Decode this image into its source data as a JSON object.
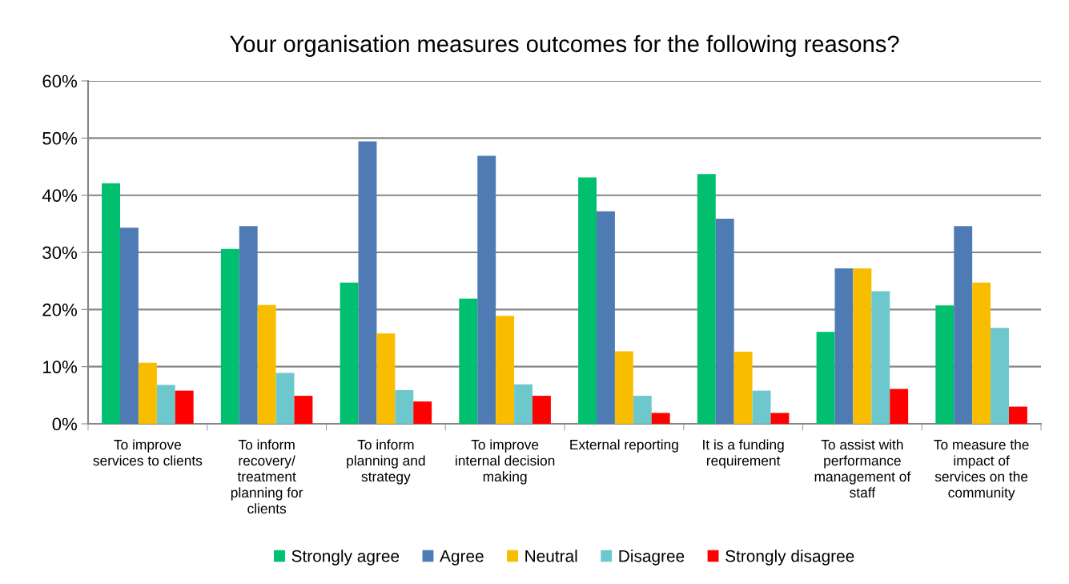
{
  "chart_data": {
    "type": "bar",
    "title": "Your organisation measures outcomes for the following reasons?",
    "categories": [
      "To improve services to clients",
      "To inform recovery/ treatment planning for clients",
      "To inform planning and strategy",
      "To improve internal decision making",
      "External reporting",
      "It is a funding requirement",
      "To assist with performance management of staff",
      "To measure the impact of services on the community"
    ],
    "series": [
      {
        "name": "Strongly agree",
        "color": "#00bf6f",
        "values": [
          42.1,
          30.6,
          24.7,
          21.9,
          43.1,
          43.7,
          16.1,
          20.7
        ]
      },
      {
        "name": "Agree",
        "color": "#4f7bb5",
        "values": [
          34.3,
          34.6,
          49.4,
          46.9,
          37.2,
          35.9,
          27.2,
          34.6
        ]
      },
      {
        "name": "Neutral",
        "color": "#f9bd00",
        "values": [
          10.7,
          20.8,
          15.8,
          18.9,
          12.7,
          12.6,
          27.2,
          24.7
        ]
      },
      {
        "name": "Disagree",
        "color": "#6cc8cd",
        "values": [
          6.8,
          8.9,
          5.9,
          6.9,
          4.9,
          5.8,
          23.2,
          16.8
        ]
      },
      {
        "name": "Strongly disagree",
        "color": "#ff0000",
        "values": [
          5.8,
          4.9,
          3.9,
          4.9,
          1.9,
          1.9,
          6.1,
          3.0
        ]
      }
    ],
    "ylim": [
      0,
      60
    ],
    "yticks": [
      {
        "value": 0,
        "label": "0%"
      },
      {
        "value": 10,
        "label": "10%"
      },
      {
        "value": 20,
        "label": "20%"
      },
      {
        "value": 30,
        "label": "30%"
      },
      {
        "value": 40,
        "label": "40%"
      },
      {
        "value": 50,
        "label": "50%"
      },
      {
        "value": 60,
        "label": "60%"
      }
    ],
    "grid": "y",
    "legend": "bottom"
  }
}
